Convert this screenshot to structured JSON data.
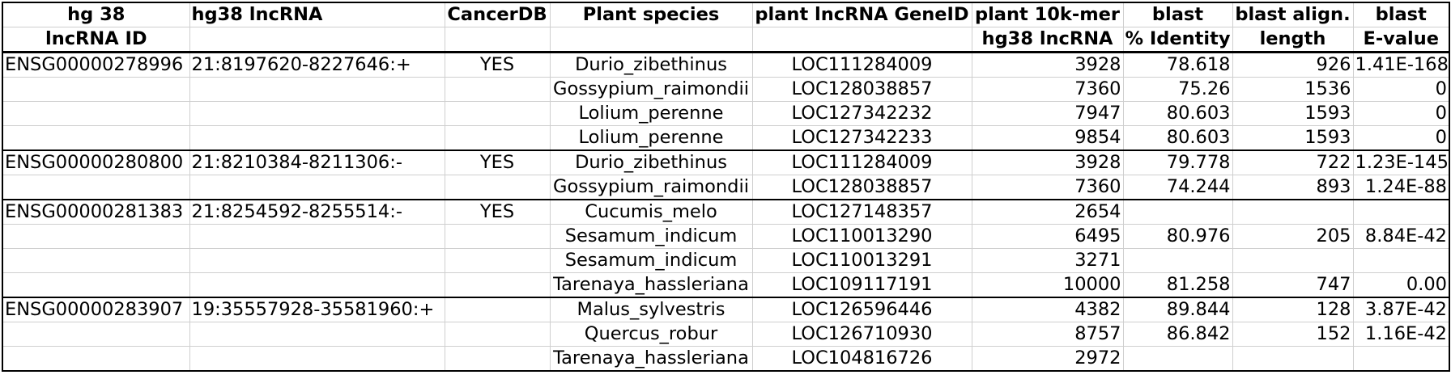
{
  "header": {
    "row1": [
      "hg 38",
      "hg38 lncRNA",
      "CancerDB",
      "Plant species",
      "plant lncRNA GeneID",
      "plant 10k-mer",
      "blast",
      "blast align.",
      "blast"
    ],
    "row2": [
      "lncRNA ID",
      "",
      "",
      "",
      "",
      "hg38 lncRNA",
      "% Identity",
      "length",
      "E-value"
    ]
  },
  "rows": [
    {
      "id": "ENSG00000278996",
      "loc": "21:8197620-8227646:+",
      "cancer": "YES",
      "species": "Durio_zibethinus",
      "gene": "LOC111284009",
      "kmer": "3928",
      "ident": "78.618",
      "len": "926",
      "eval": "1.41E-168"
    },
    {
      "id": "",
      "loc": "",
      "cancer": "",
      "species": "Gossypium_raimondii",
      "gene": "LOC128038857",
      "kmer": "7360",
      "ident": "75.26",
      "len": "1536",
      "eval": "0"
    },
    {
      "id": "",
      "loc": "",
      "cancer": "",
      "species": "Lolium_perenne",
      "gene": "LOC127342232",
      "kmer": "7947",
      "ident": "80.603",
      "len": "1593",
      "eval": "0"
    },
    {
      "id": "",
      "loc": "",
      "cancer": "",
      "species": "Lolium_perenne",
      "gene": "LOC127342233",
      "kmer": "9854",
      "ident": "80.603",
      "len": "1593",
      "eval": "0"
    },
    {
      "id": "ENSG00000280800",
      "loc": "21:8210384-8211306:-",
      "cancer": "YES",
      "species": "Durio_zibethinus",
      "gene": "LOC111284009",
      "kmer": "3928",
      "ident": "79.778",
      "len": "722",
      "eval": "1.23E-145"
    },
    {
      "id": "",
      "loc": "",
      "cancer": "",
      "species": "Gossypium_raimondii",
      "gene": "LOC128038857",
      "kmer": "7360",
      "ident": "74.244",
      "len": "893",
      "eval": "1.24E-88"
    },
    {
      "id": "ENSG00000281383",
      "loc": "21:8254592-8255514:-",
      "cancer": "YES",
      "species": "Cucumis_melo",
      "gene": "LOC127148357",
      "kmer": "2654",
      "ident": "",
      "len": "",
      "eval": ""
    },
    {
      "id": "",
      "loc": "",
      "cancer": "",
      "species": "Sesamum_indicum",
      "gene": "LOC110013290",
      "kmer": "6495",
      "ident": "80.976",
      "len": "205",
      "eval": "8.84E-42"
    },
    {
      "id": "",
      "loc": "",
      "cancer": "",
      "species": "Sesamum_indicum",
      "gene": "LOC110013291",
      "kmer": "3271",
      "ident": "",
      "len": "",
      "eval": ""
    },
    {
      "id": "",
      "loc": "",
      "cancer": "",
      "species": "Tarenaya_hassleriana",
      "gene": "LOC109117191",
      "kmer": "10000",
      "ident": "81.258",
      "len": "747",
      "eval": "0.00"
    },
    {
      "id": "ENSG00000283907",
      "loc": "19:35557928-35581960:+",
      "cancer": "",
      "species": "Malus_sylvestris",
      "gene": "LOC126596446",
      "kmer": "4382",
      "ident": "89.844",
      "len": "128",
      "eval": "3.87E-42"
    },
    {
      "id": "",
      "loc": "",
      "cancer": "",
      "species": "Quercus_robur",
      "gene": "LOC126710930",
      "kmer": "8757",
      "ident": "86.842",
      "len": "152",
      "eval": "1.16E-42"
    },
    {
      "id": "",
      "loc": "",
      "cancer": "",
      "species": "Tarenaya_hassleriana",
      "gene": "LOC104816726",
      "kmer": "2972",
      "ident": "",
      "len": "",
      "eval": ""
    }
  ]
}
